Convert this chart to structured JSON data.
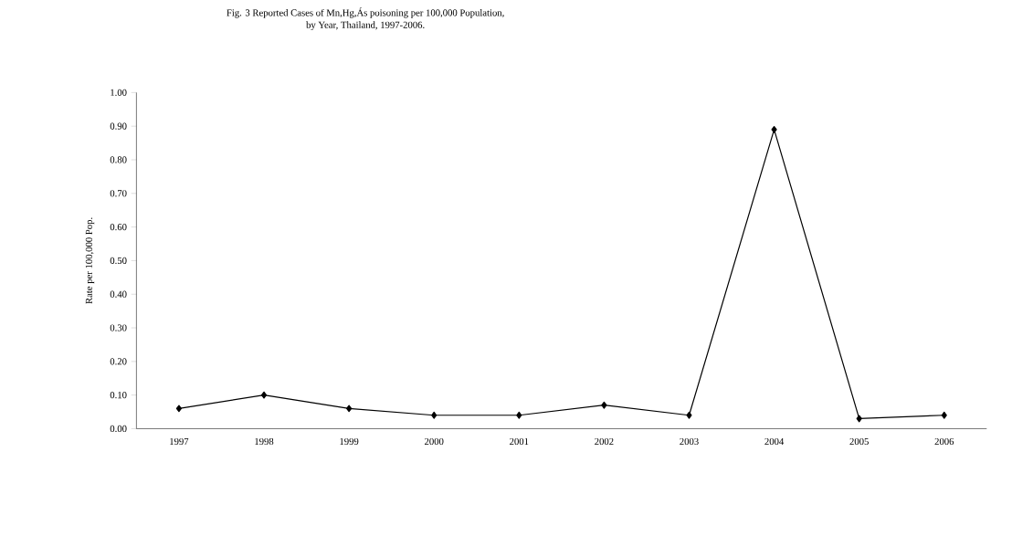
{
  "chart_data": {
    "type": "line",
    "title": "Fig. 3 Reported Cases of Mn,Hg,Ás poisoning per 100,000 Population,\nby Year, Thailand, 1997-2006.",
    "ylabel": "Rate per 100,000 Pop.",
    "categories": [
      "1997",
      "1998",
      "1999",
      "2000",
      "2001",
      "2002",
      "2003",
      "2004",
      "2005",
      "2006"
    ],
    "series": [
      {
        "color": "#000000",
        "values": [
          0.06,
          0.1,
          0.06,
          0.04,
          0.04,
          0.07,
          0.04,
          0.89,
          0.03,
          0.04
        ]
      }
    ],
    "ylim": [
      0,
      1
    ],
    "yticks": [
      {
        "value": 0,
        "label": "0.00"
      },
      {
        "value": 0.1,
        "label": "0.10"
      },
      {
        "value": 0.2,
        "label": "0.20"
      },
      {
        "value": 0.3,
        "label": "0.30"
      },
      {
        "value": 0.4,
        "label": "0.40"
      },
      {
        "value": 0.5,
        "label": "0.50"
      },
      {
        "value": 0.6,
        "label": "0.60"
      },
      {
        "value": 0.7,
        "label": "0.70"
      },
      {
        "value": 0.8,
        "label": "0.80"
      },
      {
        "value": 0.9,
        "label": "0.90"
      },
      {
        "value": 1,
        "label": "1.00"
      }
    ],
    "marker": "diamond",
    "line_style": "solid"
  }
}
